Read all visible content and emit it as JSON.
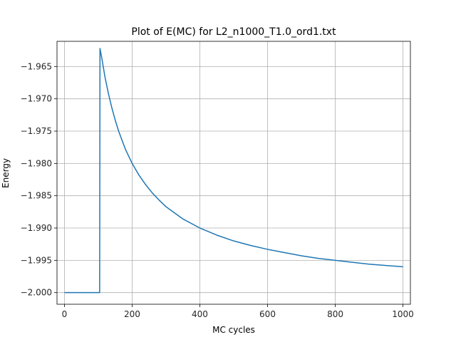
{
  "chart_data": {
    "type": "line",
    "title": "Plot of E(MC) for L2_n1000_T1.0_ord1.txt",
    "xlabel": "MC cycles",
    "ylabel": "Energy",
    "xlim": [
      -22,
      1022
    ],
    "ylim": [
      -2.0018,
      -1.9611
    ],
    "grid": true,
    "x_ticks": [
      0,
      200,
      400,
      600,
      800,
      1000
    ],
    "x_tick_labels": [
      "0",
      "200",
      "400",
      "600",
      "800",
      "1000"
    ],
    "y_ticks": [
      -2.0,
      -1.995,
      -1.99,
      -1.985,
      -1.98,
      -1.975,
      -1.97,
      -1.965
    ],
    "y_tick_labels": [
      "−2.000",
      "−1.995",
      "−1.990",
      "−1.985",
      "−1.980",
      "−1.975",
      "−1.970",
      "−1.965"
    ],
    "colors": {
      "line": "#1f77b4",
      "grid": "#b0b0b0",
      "axes": "#000000"
    },
    "series": [
      {
        "x": [
          0,
          100,
          104,
          105,
          110,
          120,
          130,
          140,
          150,
          160,
          180,
          200,
          220,
          240,
          260,
          280,
          300,
          350,
          400,
          450,
          500,
          550,
          600,
          650,
          700,
          750,
          800,
          850,
          900,
          950,
          1000
        ],
        "y": [
          -2.0,
          -2.0,
          -2.0,
          -1.9622,
          -1.9636,
          -1.9667,
          -1.9692,
          -1.9714,
          -1.9733,
          -1.975,
          -1.9778,
          -1.98,
          -1.9818,
          -1.9833,
          -1.9846,
          -1.9857,
          -1.9867,
          -1.9886,
          -1.99,
          -1.9911,
          -1.992,
          -1.9927,
          -1.9933,
          -1.9938,
          -1.9943,
          -1.9947,
          -1.995,
          -1.9953,
          -1.9956,
          -1.9958,
          -1.996
        ]
      }
    ]
  }
}
